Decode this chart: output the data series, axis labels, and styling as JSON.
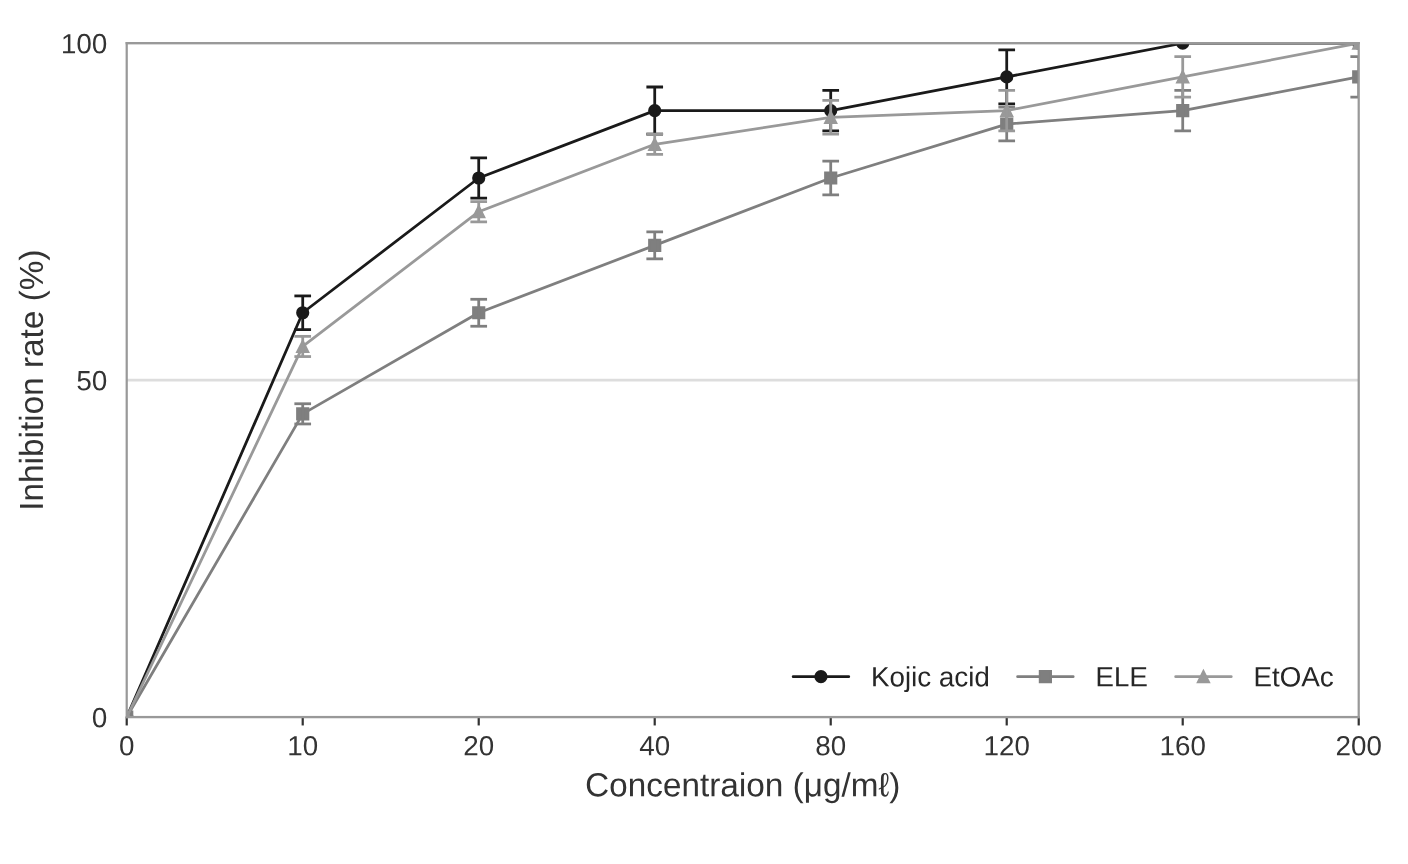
{
  "chart_data": {
    "type": "line",
    "xlabel": "Concentraion (μg/mℓ)",
    "ylabel": "Inhibition rate (%)",
    "categories": [
      "0",
      "10",
      "20",
      "40",
      "80",
      "120",
      "160",
      "200"
    ],
    "series": [
      {
        "name": "Kojic acid",
        "color": "#1a1a1a",
        "marker": "circle",
        "values": [
          0,
          60,
          80,
          90,
          90,
          95,
          100,
          100
        ],
        "errors": [
          null,
          2.5,
          3,
          3.5,
          3,
          4,
          null,
          null
        ]
      },
      {
        "name": "ELE",
        "color": "#7f7f7f",
        "marker": "square",
        "values": [
          0,
          45,
          60,
          70,
          80,
          88,
          90,
          95
        ],
        "errors": [
          null,
          1.5,
          2,
          2,
          2.5,
          2.5,
          3,
          3
        ]
      },
      {
        "name": "EtOAc",
        "color": "#999999",
        "marker": "triangle",
        "values": [
          0,
          55,
          75,
          85,
          89,
          90,
          95,
          100
        ],
        "errors": [
          null,
          1.5,
          1.5,
          1.5,
          2.5,
          3,
          3,
          null
        ]
      }
    ],
    "ylim": [
      0,
      100
    ],
    "yticks": [
      0,
      50,
      100
    ],
    "grid": "y",
    "legend": "bottom right",
    "line_style": "solid"
  }
}
